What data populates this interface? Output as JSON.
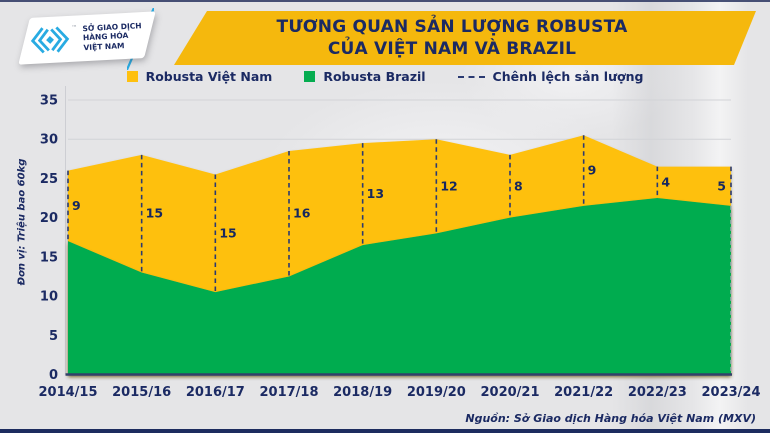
{
  "colors": {
    "background": "#E5E5E7",
    "gold": "#FEC00F",
    "banner_gold": "#F5B80D",
    "green": "#05AC50",
    "navy": "#1B2A63",
    "dash": "#2A3A72",
    "grid": "#D2D3D7",
    "axis": "#33406A",
    "logo_blue": "#29ABE2"
  },
  "logo": {
    "lines": [
      "SỞ GIAO DỊCH",
      "HÀNG HÓA",
      "VIỆT NAM"
    ],
    "trademark": "™",
    "icon": "mxv-diamond-logo"
  },
  "header": {
    "title_line1": "TƯƠNG QUAN SẢN LƯỢNG ROBUSTA",
    "title_line2": "CỦA VIỆT NAM VÀ BRAZIL"
  },
  "legend": {
    "items": [
      {
        "label": "Robusta Việt Nam",
        "swatch": "gold-square"
      },
      {
        "label": "Robusta Brazil",
        "swatch": "green-square"
      },
      {
        "label": "Chênh lệch sản lượng",
        "swatch": "navy-dashed-line"
      }
    ]
  },
  "chart_data": {
    "type": "area",
    "title": "TƯƠNG QUAN SẢN LƯỢNG ROBUSTA CỦA VIỆT NAM VÀ BRAZIL",
    "categories": [
      "2014/15",
      "2015/16",
      "2016/17",
      "2017/18",
      "2018/19",
      "2019/20",
      "2020/21",
      "2021/22",
      "2022/23",
      "2023/24"
    ],
    "series": [
      {
        "name": "Robusta Việt Nam",
        "color": "#FEC00F",
        "values": [
          26,
          28,
          25.5,
          28.5,
          29.5,
          30,
          28,
          30.5,
          26.5,
          26.5
        ]
      },
      {
        "name": "Robusta Brazil",
        "color": "#05AC50",
        "values": [
          17,
          13,
          10.5,
          12.5,
          16.5,
          18,
          20,
          21.5,
          22.5,
          21.5
        ]
      }
    ],
    "difference_series_name": "Chênh lệch sản lượng",
    "difference_labels": [
      9,
      15,
      15,
      16,
      13,
      12,
      8,
      9,
      4,
      5
    ],
    "ylabel": "Đơn vị: Triệu bao 60kg",
    "xlabel": "",
    "ylim": [
      0,
      35
    ],
    "ytick_step": 5,
    "grid": true,
    "legend_position": "top"
  },
  "footer": {
    "source": "Nguồn: Sở Giao dịch Hàng hóa Việt Nam (MXV)"
  }
}
